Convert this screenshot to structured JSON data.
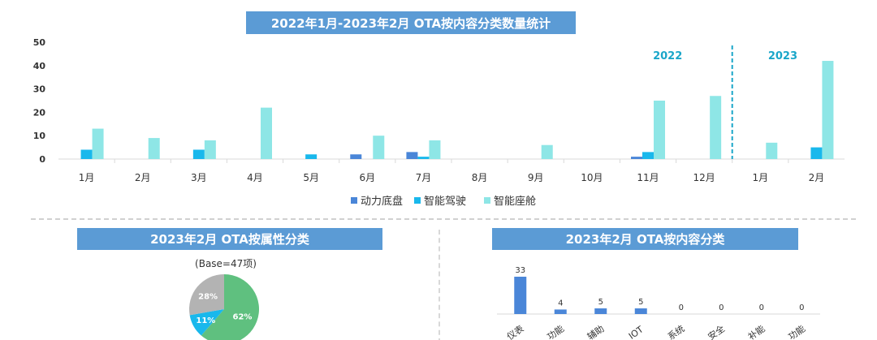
{
  "titles": {
    "main": "2022年1月-2023年2月 OTA按内容分类数量统计",
    "left": "2023年2月 OTA按属性分类",
    "right": "2023年2月 OTA按内容分类"
  },
  "base_note": "(Base=47项)",
  "colors": {
    "banner": "#5b9bd5",
    "s1": "#4a86d8",
    "s2": "#19b8ec",
    "s3": "#8ee6e6",
    "pie_green": "#5fc07f",
    "pie_gray": "#b3b3b3",
    "pie_blue": "#19b8ec"
  },
  "chart_data": [
    {
      "type": "bar",
      "title": "2022年1月-2023年2月 OTA按内容分类数量统计",
      "categories": [
        "1月",
        "2月",
        "3月",
        "4月",
        "5月",
        "6月",
        "7月",
        "8月",
        "9月",
        "10月",
        "11月",
        "12月",
        "1月",
        "2月"
      ],
      "series": [
        {
          "name": "动力底盘",
          "values": [
            0,
            0,
            0,
            0,
            0,
            2,
            3,
            0,
            0,
            0,
            1,
            0,
            0,
            0
          ]
        },
        {
          "name": "智能驾驶",
          "values": [
            4,
            0,
            4,
            0,
            2,
            0,
            1,
            0,
            0,
            0,
            3,
            0,
            0,
            5
          ]
        },
        {
          "name": "智能座舱",
          "values": [
            13,
            9,
            8,
            22,
            0,
            10,
            8,
            0,
            6,
            0,
            25,
            27,
            7,
            42
          ]
        }
      ],
      "ylim": [
        0,
        50
      ],
      "yticks": [
        0,
        10,
        20,
        30,
        40,
        50
      ],
      "year_labels": [
        "2022",
        "2023"
      ],
      "legend": "bottom",
      "grid": false
    },
    {
      "type": "pie",
      "title": "2023年2月 OTA按属性分类",
      "slices": [
        {
          "label": "62%",
          "value": 62
        },
        {
          "label": "11%",
          "value": 11
        },
        {
          "label": "28%",
          "value": 28
        }
      ]
    },
    {
      "type": "bar",
      "title": "2023年2月 OTA按内容分类",
      "categories": [
        "仪表",
        "功能",
        "辅助",
        "IOT",
        "系统",
        "安全",
        "补能",
        "功能"
      ],
      "values": [
        33,
        4,
        5,
        5,
        0,
        0,
        0,
        0
      ]
    }
  ]
}
